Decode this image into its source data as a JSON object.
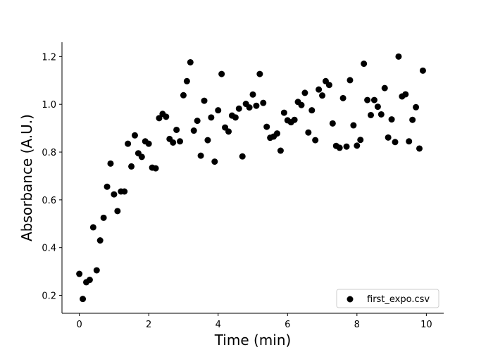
{
  "chart_data": {
    "type": "scatter",
    "title": "",
    "xlabel": "Time (min)",
    "ylabel": "Absorbance (A.U.)",
    "xlim": [
      -0.5,
      10.5
    ],
    "ylim": [
      0.125,
      1.26
    ],
    "xticks": [
      0,
      2,
      4,
      6,
      8,
      10
    ],
    "yticks": [
      0.2,
      0.4,
      0.6,
      0.8,
      1.0,
      1.2
    ],
    "xtick_labels": [
      "0",
      "2",
      "4",
      "6",
      "8",
      "10"
    ],
    "ytick_labels": [
      "0.2",
      "0.4",
      "0.6",
      "0.8",
      "1.0",
      "1.2"
    ],
    "grid": false,
    "spines": "left-bottom",
    "legend": {
      "position": "lower-right"
    },
    "marker_color": "#000000",
    "series": [
      {
        "name": "first_expo.csv",
        "points": [
          [
            0.0,
            0.29
          ],
          [
            0.1,
            0.185
          ],
          [
            0.2,
            0.255
          ],
          [
            0.3,
            0.265
          ],
          [
            0.4,
            0.485
          ],
          [
            0.5,
            0.305
          ],
          [
            0.6,
            0.43
          ],
          [
            0.7,
            0.525
          ],
          [
            0.8,
            0.655
          ],
          [
            0.9,
            0.752
          ],
          [
            1.0,
            0.623
          ],
          [
            1.1,
            0.553
          ],
          [
            1.2,
            0.635
          ],
          [
            1.3,
            0.635
          ],
          [
            1.4,
            0.835
          ],
          [
            1.5,
            0.74
          ],
          [
            1.6,
            0.87
          ],
          [
            1.7,
            0.795
          ],
          [
            1.8,
            0.78
          ],
          [
            1.9,
            0.845
          ],
          [
            2.0,
            0.835
          ],
          [
            2.1,
            0.735
          ],
          [
            2.2,
            0.732
          ],
          [
            2.3,
            0.942
          ],
          [
            2.4,
            0.96
          ],
          [
            2.5,
            0.948
          ],
          [
            2.6,
            0.855
          ],
          [
            2.7,
            0.84
          ],
          [
            2.8,
            0.893
          ],
          [
            2.9,
            0.845
          ],
          [
            3.0,
            1.038
          ],
          [
            3.1,
            1.097
          ],
          [
            3.2,
            1.176
          ],
          [
            3.3,
            0.89
          ],
          [
            3.4,
            0.931
          ],
          [
            3.5,
            0.785
          ],
          [
            3.6,
            1.015
          ],
          [
            3.7,
            0.85
          ],
          [
            3.8,
            0.945
          ],
          [
            3.9,
            0.76
          ],
          [
            4.0,
            0.975
          ],
          [
            4.1,
            1.127
          ],
          [
            4.2,
            0.903
          ],
          [
            4.3,
            0.886
          ],
          [
            4.4,
            0.953
          ],
          [
            4.5,
            0.945
          ],
          [
            4.6,
            0.982
          ],
          [
            4.7,
            0.782
          ],
          [
            4.8,
            1.002
          ],
          [
            4.9,
            0.987
          ],
          [
            5.0,
            1.041
          ],
          [
            5.1,
            0.994
          ],
          [
            5.2,
            1.127
          ],
          [
            5.3,
            1.006
          ],
          [
            5.4,
            0.906
          ],
          [
            5.5,
            0.86
          ],
          [
            5.6,
            0.865
          ],
          [
            5.7,
            0.878
          ],
          [
            5.8,
            0.806
          ],
          [
            5.9,
            0.965
          ],
          [
            6.0,
            0.933
          ],
          [
            6.1,
            0.925
          ],
          [
            6.2,
            0.935
          ],
          [
            6.3,
            1.01
          ],
          [
            6.4,
            0.997
          ],
          [
            6.5,
            1.048
          ],
          [
            6.6,
            0.882
          ],
          [
            6.7,
            0.975
          ],
          [
            6.8,
            0.85
          ],
          [
            6.9,
            1.062
          ],
          [
            7.0,
            1.037
          ],
          [
            7.1,
            1.097
          ],
          [
            7.2,
            1.081
          ],
          [
            7.3,
            0.92
          ],
          [
            7.4,
            0.826
          ],
          [
            7.5,
            0.818
          ],
          [
            7.6,
            1.026
          ],
          [
            7.7,
            0.823
          ],
          [
            7.8,
            1.101
          ],
          [
            7.9,
            0.912
          ],
          [
            8.0,
            0.827
          ],
          [
            8.1,
            0.851
          ],
          [
            8.2,
            1.17
          ],
          [
            8.3,
            1.018
          ],
          [
            8.4,
            0.955
          ],
          [
            8.5,
            1.018
          ],
          [
            8.6,
            0.99
          ],
          [
            8.7,
            0.958
          ],
          [
            8.8,
            1.068
          ],
          [
            8.9,
            0.861
          ],
          [
            9.0,
            0.937
          ],
          [
            9.1,
            0.842
          ],
          [
            9.2,
            1.2
          ],
          [
            9.3,
            1.033
          ],
          [
            9.4,
            1.042
          ],
          [
            9.5,
            0.845
          ],
          [
            9.6,
            0.935
          ],
          [
            9.7,
            0.988
          ],
          [
            9.8,
            0.815
          ],
          [
            9.9,
            1.141
          ]
        ]
      }
    ]
  }
}
